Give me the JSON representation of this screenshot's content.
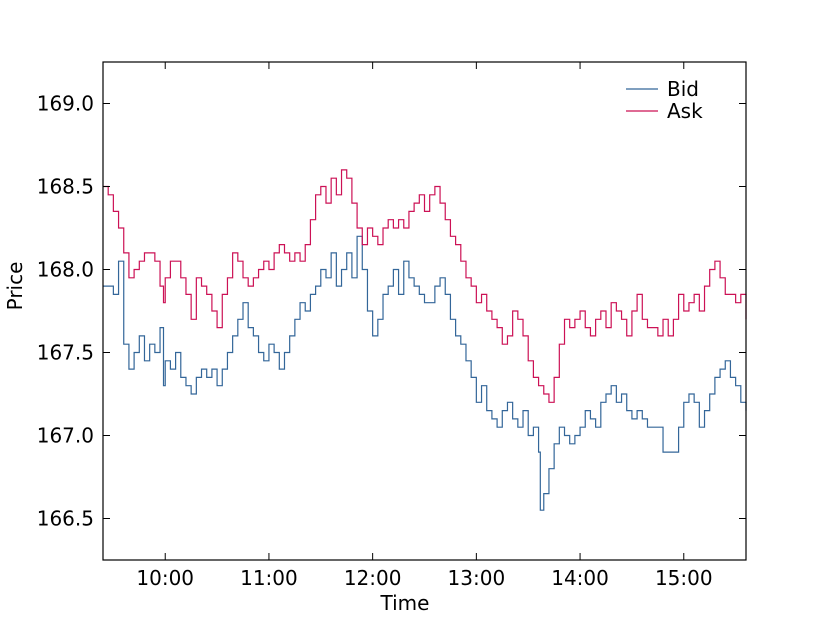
{
  "chart_data": {
    "type": "line",
    "xlabel": "Time",
    "ylabel": "Price",
    "x_unit": "time of day",
    "xlim": [
      "09:24",
      "15:36"
    ],
    "ylim": [
      166.25,
      169.25
    ],
    "x_ticks": [
      "10:00",
      "11:00",
      "12:00",
      "13:00",
      "14:00",
      "15:00"
    ],
    "y_ticks": [
      "166.5",
      "167.0",
      "167.5",
      "168.0",
      "168.5",
      "169.0"
    ],
    "legend_position": "top-right",
    "grid": false,
    "series": [
      {
        "name": "Bid",
        "color": "#336699",
        "points": [
          [
            "09:24",
            167.9
          ],
          [
            "09:30",
            167.85
          ],
          [
            "09:33",
            168.05
          ],
          [
            "09:36",
            167.55
          ],
          [
            "09:39",
            167.4
          ],
          [
            "09:42",
            167.5
          ],
          [
            "09:45",
            167.6
          ],
          [
            "09:48",
            167.45
          ],
          [
            "09:51",
            167.55
          ],
          [
            "09:54",
            167.5
          ],
          [
            "09:57",
            167.65
          ],
          [
            "09:59",
            167.3
          ],
          [
            "10:00",
            167.45
          ],
          [
            "10:03",
            167.4
          ],
          [
            "10:06",
            167.5
          ],
          [
            "10:09",
            167.35
          ],
          [
            "10:12",
            167.3
          ],
          [
            "10:15",
            167.25
          ],
          [
            "10:18",
            167.35
          ],
          [
            "10:21",
            167.4
          ],
          [
            "10:24",
            167.35
          ],
          [
            "10:27",
            167.4
          ],
          [
            "10:30",
            167.3
          ],
          [
            "10:33",
            167.4
          ],
          [
            "10:36",
            167.5
          ],
          [
            "10:39",
            167.6
          ],
          [
            "10:42",
            167.7
          ],
          [
            "10:45",
            167.8
          ],
          [
            "10:48",
            167.65
          ],
          [
            "10:51",
            167.6
          ],
          [
            "10:54",
            167.5
          ],
          [
            "10:57",
            167.45
          ],
          [
            "11:00",
            167.55
          ],
          [
            "11:03",
            167.5
          ],
          [
            "11:06",
            167.4
          ],
          [
            "11:09",
            167.5
          ],
          [
            "11:12",
            167.6
          ],
          [
            "11:15",
            167.7
          ],
          [
            "11:18",
            167.8
          ],
          [
            "11:21",
            167.75
          ],
          [
            "11:24",
            167.85
          ],
          [
            "11:27",
            167.9
          ],
          [
            "11:30",
            168.0
          ],
          [
            "11:33",
            167.95
          ],
          [
            "11:36",
            168.1
          ],
          [
            "11:39",
            167.9
          ],
          [
            "11:42",
            168.0
          ],
          [
            "11:45",
            168.1
          ],
          [
            "11:48",
            167.95
          ],
          [
            "11:51",
            168.2
          ],
          [
            "11:54",
            168.0
          ],
          [
            "11:57",
            167.75
          ],
          [
            "12:00",
            167.6
          ],
          [
            "12:03",
            167.7
          ],
          [
            "12:06",
            167.85
          ],
          [
            "12:09",
            167.9
          ],
          [
            "12:12",
            168.0
          ],
          [
            "12:15",
            167.85
          ],
          [
            "12:18",
            168.05
          ],
          [
            "12:21",
            167.95
          ],
          [
            "12:24",
            167.9
          ],
          [
            "12:27",
            167.85
          ],
          [
            "12:30",
            167.8
          ],
          [
            "12:33",
            167.8
          ],
          [
            "12:36",
            167.9
          ],
          [
            "12:39",
            167.95
          ],
          [
            "12:42",
            167.85
          ],
          [
            "12:45",
            167.7
          ],
          [
            "12:48",
            167.6
          ],
          [
            "12:51",
            167.55
          ],
          [
            "12:54",
            167.45
          ],
          [
            "12:57",
            167.35
          ],
          [
            "13:00",
            167.2
          ],
          [
            "13:03",
            167.3
          ],
          [
            "13:06",
            167.15
          ],
          [
            "13:09",
            167.1
          ],
          [
            "13:12",
            167.05
          ],
          [
            "13:15",
            167.15
          ],
          [
            "13:18",
            167.2
          ],
          [
            "13:21",
            167.1
          ],
          [
            "13:24",
            167.05
          ],
          [
            "13:27",
            167.15
          ],
          [
            "13:30",
            167.0
          ],
          [
            "13:33",
            167.05
          ],
          [
            "13:36",
            166.9
          ],
          [
            "13:37",
            166.55
          ],
          [
            "13:39",
            166.65
          ],
          [
            "13:42",
            166.8
          ],
          [
            "13:45",
            166.95
          ],
          [
            "13:48",
            167.05
          ],
          [
            "13:51",
            167.0
          ],
          [
            "13:54",
            166.95
          ],
          [
            "13:57",
            167.0
          ],
          [
            "14:00",
            167.05
          ],
          [
            "14:03",
            167.15
          ],
          [
            "14:06",
            167.1
          ],
          [
            "14:09",
            167.05
          ],
          [
            "14:12",
            167.2
          ],
          [
            "14:15",
            167.25
          ],
          [
            "14:18",
            167.3
          ],
          [
            "14:21",
            167.2
          ],
          [
            "14:24",
            167.25
          ],
          [
            "14:27",
            167.15
          ],
          [
            "14:30",
            167.1
          ],
          [
            "14:33",
            167.15
          ],
          [
            "14:36",
            167.1
          ],
          [
            "14:39",
            167.05
          ],
          [
            "14:42",
            167.05
          ],
          [
            "14:45",
            167.05
          ],
          [
            "14:48",
            166.9
          ],
          [
            "14:51",
            166.9
          ],
          [
            "14:54",
            166.9
          ],
          [
            "14:57",
            167.05
          ],
          [
            "15:00",
            167.2
          ],
          [
            "15:03",
            167.25
          ],
          [
            "15:06",
            167.2
          ],
          [
            "15:09",
            167.05
          ],
          [
            "15:12",
            167.15
          ],
          [
            "15:15",
            167.25
          ],
          [
            "15:18",
            167.35
          ],
          [
            "15:21",
            167.4
          ],
          [
            "15:24",
            167.45
          ],
          [
            "15:27",
            167.35
          ],
          [
            "15:30",
            167.3
          ],
          [
            "15:33",
            167.2
          ],
          [
            "15:36",
            167.15
          ]
        ]
      },
      {
        "name": "Ask",
        "color": "#cc1155",
        "points": [
          [
            "09:24",
            168.5
          ],
          [
            "09:27",
            168.45
          ],
          [
            "09:30",
            168.35
          ],
          [
            "09:33",
            168.25
          ],
          [
            "09:36",
            168.1
          ],
          [
            "09:39",
            167.95
          ],
          [
            "09:42",
            168.0
          ],
          [
            "09:45",
            168.05
          ],
          [
            "09:48",
            168.1
          ],
          [
            "09:51",
            168.1
          ],
          [
            "09:54",
            168.05
          ],
          [
            "09:57",
            167.9
          ],
          [
            "09:59",
            167.8
          ],
          [
            "10:00",
            167.95
          ],
          [
            "10:03",
            168.05
          ],
          [
            "10:06",
            168.05
          ],
          [
            "10:09",
            167.95
          ],
          [
            "10:12",
            167.85
          ],
          [
            "10:15",
            167.7
          ],
          [
            "10:18",
            167.95
          ],
          [
            "10:21",
            167.9
          ],
          [
            "10:24",
            167.85
          ],
          [
            "10:27",
            167.75
          ],
          [
            "10:30",
            167.65
          ],
          [
            "10:33",
            167.85
          ],
          [
            "10:36",
            167.95
          ],
          [
            "10:39",
            168.1
          ],
          [
            "10:42",
            168.05
          ],
          [
            "10:45",
            167.95
          ],
          [
            "10:48",
            167.9
          ],
          [
            "10:51",
            167.95
          ],
          [
            "10:54",
            168.0
          ],
          [
            "10:57",
            168.05
          ],
          [
            "11:00",
            168.0
          ],
          [
            "11:03",
            168.1
          ],
          [
            "11:06",
            168.15
          ],
          [
            "11:09",
            168.1
          ],
          [
            "11:12",
            168.05
          ],
          [
            "11:15",
            168.1
          ],
          [
            "11:18",
            168.05
          ],
          [
            "11:21",
            168.15
          ],
          [
            "11:24",
            168.3
          ],
          [
            "11:27",
            168.45
          ],
          [
            "11:30",
            168.5
          ],
          [
            "11:33",
            168.4
          ],
          [
            "11:36",
            168.55
          ],
          [
            "11:39",
            168.45
          ],
          [
            "11:42",
            168.6
          ],
          [
            "11:45",
            168.55
          ],
          [
            "11:48",
            168.4
          ],
          [
            "11:51",
            168.25
          ],
          [
            "11:54",
            168.15
          ],
          [
            "11:57",
            168.25
          ],
          [
            "12:00",
            168.2
          ],
          [
            "12:03",
            168.15
          ],
          [
            "12:06",
            168.25
          ],
          [
            "12:09",
            168.3
          ],
          [
            "12:12",
            168.25
          ],
          [
            "12:15",
            168.3
          ],
          [
            "12:18",
            168.25
          ],
          [
            "12:21",
            168.35
          ],
          [
            "12:24",
            168.4
          ],
          [
            "12:27",
            168.45
          ],
          [
            "12:30",
            168.35
          ],
          [
            "12:33",
            168.45
          ],
          [
            "12:36",
            168.5
          ],
          [
            "12:39",
            168.4
          ],
          [
            "12:42",
            168.3
          ],
          [
            "12:45",
            168.2
          ],
          [
            "12:48",
            168.15
          ],
          [
            "12:51",
            168.05
          ],
          [
            "12:54",
            167.95
          ],
          [
            "12:57",
            167.9
          ],
          [
            "13:00",
            167.8
          ],
          [
            "13:03",
            167.85
          ],
          [
            "13:06",
            167.75
          ],
          [
            "13:09",
            167.7
          ],
          [
            "13:12",
            167.65
          ],
          [
            "13:15",
            167.55
          ],
          [
            "13:18",
            167.6
          ],
          [
            "13:21",
            167.75
          ],
          [
            "13:24",
            167.7
          ],
          [
            "13:27",
            167.6
          ],
          [
            "13:30",
            167.45
          ],
          [
            "13:33",
            167.35
          ],
          [
            "13:36",
            167.3
          ],
          [
            "13:39",
            167.25
          ],
          [
            "13:42",
            167.2
          ],
          [
            "13:45",
            167.35
          ],
          [
            "13:48",
            167.55
          ],
          [
            "13:51",
            167.7
          ],
          [
            "13:54",
            167.65
          ],
          [
            "13:57",
            167.7
          ],
          [
            "14:00",
            167.75
          ],
          [
            "14:03",
            167.65
          ],
          [
            "14:06",
            167.6
          ],
          [
            "14:09",
            167.7
          ],
          [
            "14:12",
            167.75
          ],
          [
            "14:15",
            167.65
          ],
          [
            "14:18",
            167.8
          ],
          [
            "14:21",
            167.75
          ],
          [
            "14:24",
            167.7
          ],
          [
            "14:27",
            167.6
          ],
          [
            "14:30",
            167.75
          ],
          [
            "14:33",
            167.85
          ],
          [
            "14:36",
            167.7
          ],
          [
            "14:39",
            167.65
          ],
          [
            "14:42",
            167.65
          ],
          [
            "14:45",
            167.6
          ],
          [
            "14:48",
            167.7
          ],
          [
            "14:51",
            167.6
          ],
          [
            "14:54",
            167.7
          ],
          [
            "14:57",
            167.85
          ],
          [
            "15:00",
            167.75
          ],
          [
            "15:03",
            167.8
          ],
          [
            "15:06",
            167.85
          ],
          [
            "15:09",
            167.75
          ],
          [
            "15:12",
            167.9
          ],
          [
            "15:15",
            168.0
          ],
          [
            "15:18",
            168.05
          ],
          [
            "15:21",
            167.95
          ],
          [
            "15:24",
            167.85
          ],
          [
            "15:27",
            167.85
          ],
          [
            "15:30",
            167.8
          ],
          [
            "15:33",
            167.85
          ],
          [
            "15:36",
            167.7
          ]
        ]
      }
    ]
  }
}
